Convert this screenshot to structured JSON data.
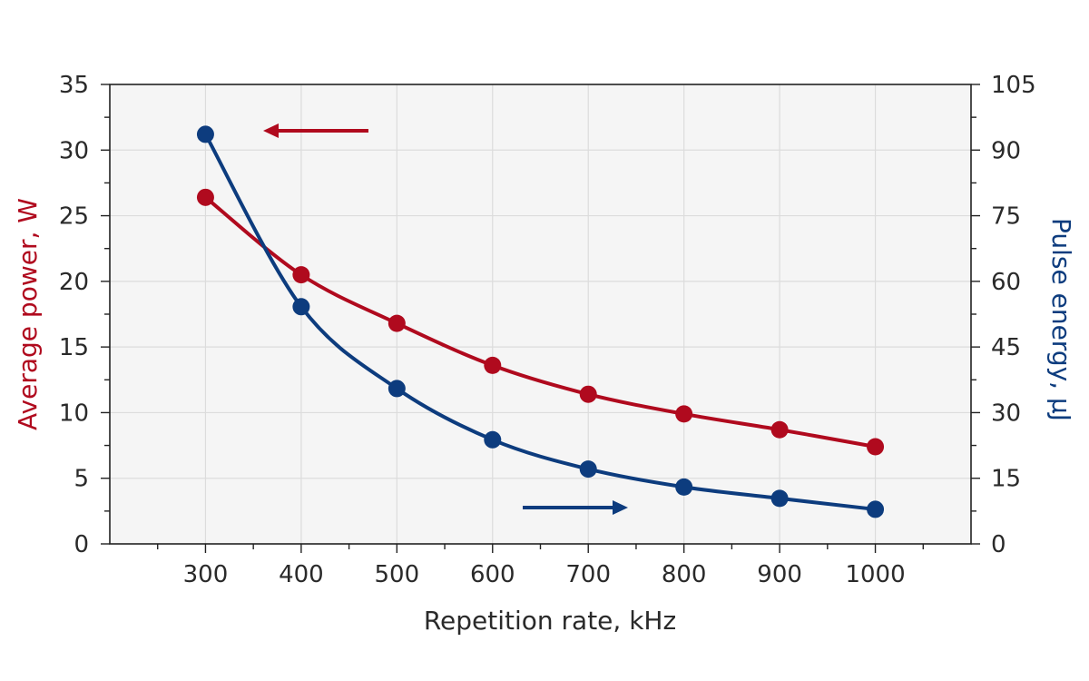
{
  "chart_data": {
    "type": "line",
    "xlabel": "Repetition rate, kHz",
    "ylabel_left": "Average power, W",
    "ylabel_right": "Pulse energy, μJ",
    "x_ticks": [
      300,
      400,
      500,
      600,
      700,
      800,
      900,
      1000
    ],
    "xlim": [
      200,
      1100
    ],
    "ylim_left": [
      0,
      35
    ],
    "ylim_right": [
      0,
      105
    ],
    "y_ticks_left": [
      0,
      5,
      10,
      15,
      20,
      25,
      30,
      35
    ],
    "y_ticks_right": [
      0,
      15,
      30,
      45,
      60,
      75,
      90,
      105
    ],
    "grid": true,
    "colors": {
      "power": "#b00a1e",
      "energy": "#0d3c7e",
      "plot_background": "#f5f5f5",
      "grid": "#dcdcdc"
    },
    "series": [
      {
        "key": "power",
        "axis": "left",
        "x": [
          300,
          400,
          500,
          600,
          700,
          800,
          900,
          1000
        ],
        "values": [
          26.4,
          20.5,
          16.8,
          13.6,
          11.4,
          9.9,
          8.7,
          7.4
        ]
      },
      {
        "key": "energy",
        "axis": "right",
        "x": [
          300,
          400,
          500,
          600,
          700,
          800,
          900,
          1000
        ],
        "values": [
          93.6,
          54.2,
          35.5,
          23.8,
          17.1,
          13.0,
          10.4,
          7.9
        ]
      }
    ],
    "annotations": [
      {
        "type": "arrow",
        "direction": "left",
        "color": "#b00a1e",
        "series": "power"
      },
      {
        "type": "arrow",
        "direction": "right",
        "color": "#0d3c7e",
        "series": "energy"
      }
    ]
  }
}
